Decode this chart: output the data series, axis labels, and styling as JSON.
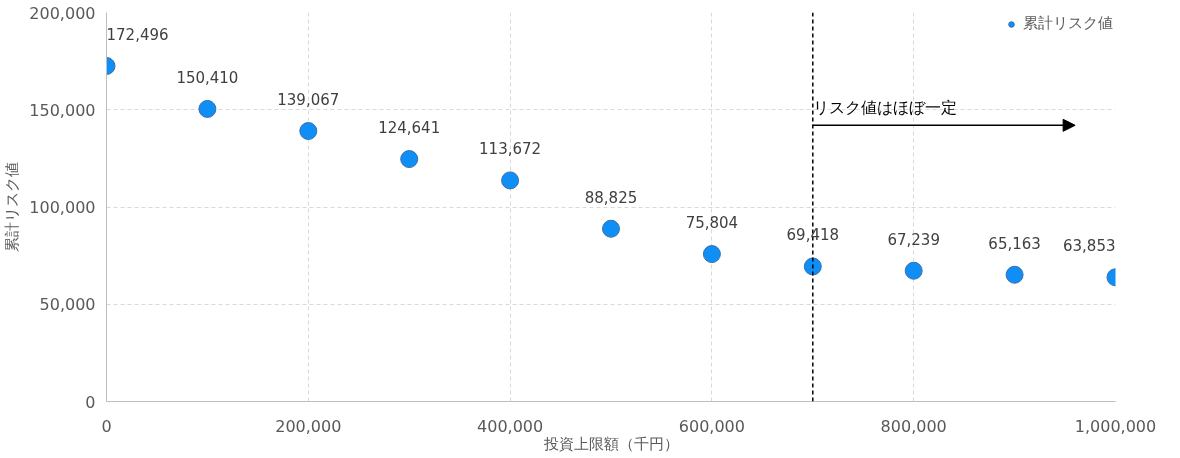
{
  "chart_data": {
    "type": "scatter",
    "xlabel": "投資上限額（千円）",
    "ylabel": "累計リスク値",
    "x": [
      0,
      100000,
      200000,
      300000,
      400000,
      500000,
      600000,
      700000,
      800000,
      900000,
      1000000
    ],
    "series": [
      {
        "name": "累計リスク値",
        "color": "#0f8ff5",
        "values": [
          172496,
          150410,
          139067,
          124641,
          113672,
          88825,
          75804,
          69418,
          67239,
          65163,
          63853
        ],
        "value_labels": [
          "172,496",
          "150,410",
          "139,067",
          "124,641",
          "113,672",
          "88,825",
          "75,804",
          "69,418",
          "67,239",
          "65,163",
          "63,853"
        ]
      }
    ],
    "xlim": [
      0,
      1000000
    ],
    "ylim": [
      0,
      200000
    ],
    "xticks": [
      {
        "value": 0,
        "label": "0"
      },
      {
        "value": 200000,
        "label": "200,000"
      },
      {
        "value": 400000,
        "label": "400,000"
      },
      {
        "value": 600000,
        "label": "600,000"
      },
      {
        "value": 800000,
        "label": "800,000"
      },
      {
        "value": 1000000,
        "label": "1,000,000"
      }
    ],
    "yticks": [
      {
        "value": 0,
        "label": "0"
      },
      {
        "value": 50000,
        "label": "50,000"
      },
      {
        "value": 100000,
        "label": "100,000"
      },
      {
        "value": 150000,
        "label": "150,000"
      },
      {
        "value": 200000,
        "label": "200,000"
      }
    ],
    "ref_lines": [
      {
        "axis": "x",
        "value": 700000,
        "color": "#000000",
        "line_style": "dashed"
      }
    ],
    "annotations": [
      {
        "text": "リスク値はほぼ一定",
        "x": 700000,
        "y": 142000
      }
    ],
    "grid": true,
    "legend": "top right",
    "marker": "circle"
  }
}
